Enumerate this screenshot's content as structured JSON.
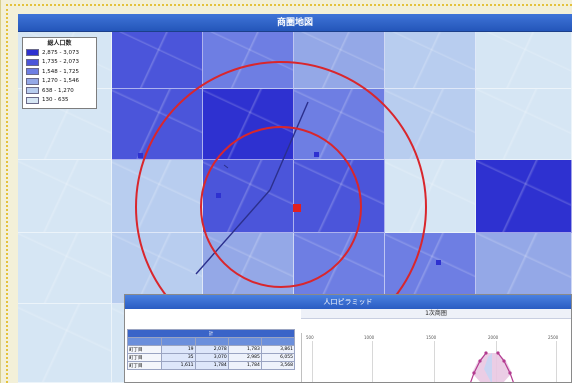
{
  "map": {
    "title": "商圏地図",
    "colors": {
      "c1": "#2e31d0",
      "c2": "#4b55da",
      "c3": "#6e7ee3",
      "c4": "#94a8e7",
      "c5": "#b8cdef",
      "c6": "#d6e6f4",
      "marker": "#e21f1f",
      "ring": "#d9262c",
      "road": "#2b2f8c"
    },
    "grid": [
      [
        "c6",
        "c2",
        "c3",
        "c4",
        "c5",
        "c6"
      ],
      [
        "c6",
        "c2",
        "c1",
        "c3",
        "c5",
        "c6"
      ],
      [
        "c6",
        "c5",
        "c2",
        "c2",
        "c6",
        "c1"
      ],
      [
        "c6",
        "c5",
        "c4",
        "c3",
        "c3",
        "c4"
      ],
      [
        "c6",
        "c6",
        "c5",
        "c5",
        "c5",
        "c6"
      ]
    ]
  },
  "legend": {
    "title": "総人口数",
    "items": [
      {
        "label": "2,875 - 3,073",
        "color": "#2e31d0"
      },
      {
        "label": "1,735 - 2,073",
        "color": "#4b55da"
      },
      {
        "label": "1,548 - 1,725",
        "color": "#6e7ee3"
      },
      {
        "label": "1,270 - 1,546",
        "color": "#94a8e7"
      },
      {
        "label": "638 - 1,270",
        "color": "#b8cdef"
      },
      {
        "label": "130 - 635",
        "color": "#d6e6f4"
      }
    ]
  },
  "panel": {
    "title": "人口ピラミッド",
    "subtitle": "1次商圏",
    "table": {
      "header": "計",
      "rows": [
        [
          "町丁目",
          "19",
          "2,078",
          "1,783",
          "3,861"
        ],
        [
          "町丁目",
          "35",
          "3,070",
          "2,985",
          "6,055"
        ],
        [
          "町丁目",
          "1,611",
          "1,784",
          "1,784",
          "3,568"
        ]
      ]
    },
    "pyramid_ticks": [
      "500",
      "1000",
      "1500",
      "2000",
      "2500"
    ]
  }
}
